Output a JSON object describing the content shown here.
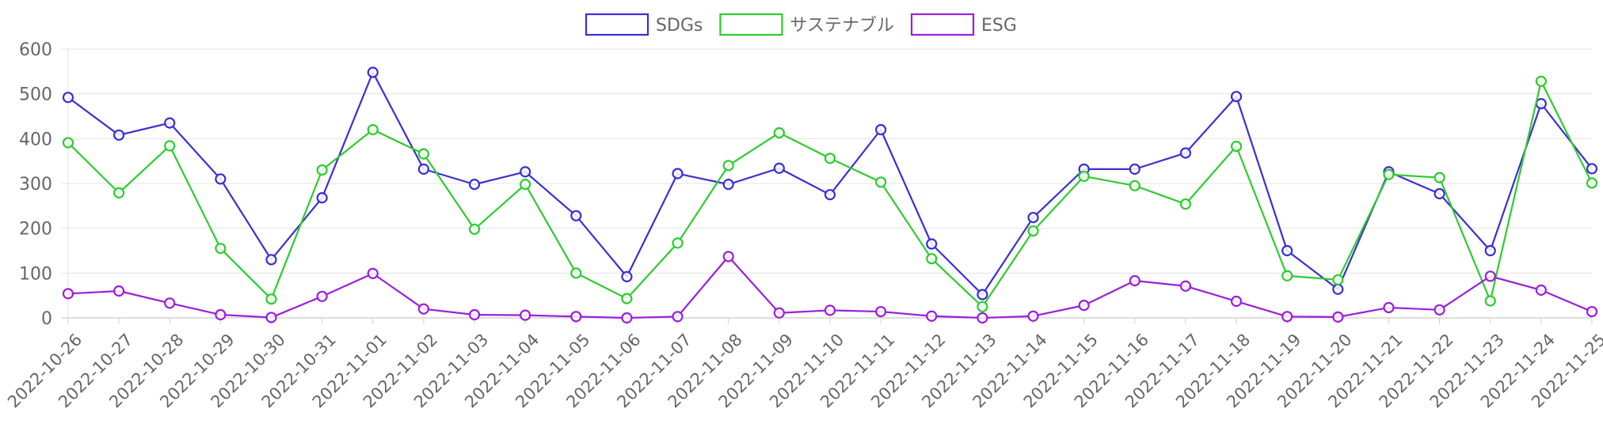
{
  "chart_data": {
    "type": "line",
    "title": "",
    "xlabel": "",
    "ylabel": "",
    "ylim": [
      0,
      600
    ],
    "y_ticks": [
      0,
      100,
      200,
      300,
      400,
      500,
      600
    ],
    "grid": true,
    "legend_position": "top",
    "categories": [
      "2022-10-26",
      "2022-10-27",
      "2022-10-28",
      "2022-10-29",
      "2022-10-30",
      "2022-10-31",
      "2022-11-01",
      "2022-11-02",
      "2022-11-03",
      "2022-11-04",
      "2022-11-05",
      "2022-11-06",
      "2022-11-07",
      "2022-11-08",
      "2022-11-09",
      "2022-11-10",
      "2022-11-11",
      "2022-11-12",
      "2022-11-13",
      "2022-11-14",
      "2022-11-15",
      "2022-11-16",
      "2022-11-17",
      "2022-11-18",
      "2022-11-19",
      "2022-11-20",
      "2022-11-21",
      "2022-11-22",
      "2022-11-23",
      "2022-11-24",
      "2022-11-25"
    ],
    "series": [
      {
        "name": "SDGs",
        "color": "#3a2fd4",
        "values": [
          492,
          408,
          435,
          310,
          130,
          268,
          548,
          332,
          298,
          326,
          228,
          92,
          322,
          298,
          334,
          275,
          420,
          165,
          52,
          224,
          332,
          332,
          368,
          494,
          150,
          64,
          326,
          277,
          150,
          478,
          333
        ]
      },
      {
        "name": "サステナブル",
        "color": "#2ecc2e",
        "values": [
          391,
          279,
          384,
          155,
          42,
          330,
          420,
          366,
          198,
          298,
          100,
          43,
          167,
          340,
          413,
          356,
          303,
          132,
          25,
          194,
          316,
          295,
          254,
          383,
          94,
          85,
          320,
          313,
          38,
          528,
          301
        ]
      },
      {
        "name": "ESG",
        "color": "#9b1fdb",
        "values": [
          54,
          60,
          33,
          7,
          1,
          48,
          99,
          20,
          7,
          6,
          3,
          0,
          3,
          137,
          11,
          17,
          14,
          4,
          0,
          4,
          28,
          83,
          71,
          37,
          3,
          2,
          23,
          18,
          93,
          62,
          14
        ]
      }
    ]
  }
}
